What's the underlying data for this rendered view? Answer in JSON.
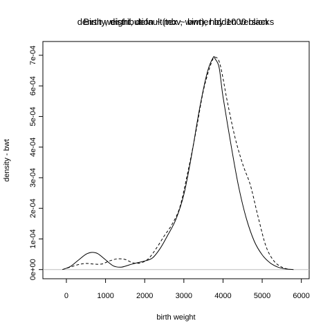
{
  "chart_data": {
    "type": "line",
    "titles": [
      "Birth weight, default(tex ~ bwt), hidden version",
      "density, distribution ~ mbv, winner by 1000 blacks"
    ],
    "xlabel": "birth weight",
    "ylabel": "density - bwt",
    "xlim": [
      -600,
      6200
    ],
    "ylim": [
      -3e-05,
      0.000745
    ],
    "x_ticks": [
      0,
      1000,
      2000,
      3000,
      4000,
      5000,
      6000
    ],
    "x_tick_labels": [
      "0",
      "1000",
      "2000",
      "3000",
      "4000",
      "5000",
      "6000"
    ],
    "y_ticks": [
      0,
      0.0001,
      0.0002,
      0.0003,
      0.0004,
      0.0005,
      0.0006,
      0.0007
    ],
    "y_tick_labels": [
      "0e+00",
      "1e-04",
      "2e-04",
      "3e-04",
      "4e-04",
      "5e-04",
      "6e-04",
      "7e-04"
    ],
    "reference_line_y": 0,
    "grid": false,
    "legend": "none",
    "colors": {
      "line": "#000000",
      "reference": "#bebebe",
      "frame": "#000000"
    },
    "series": [
      {
        "style": "solid",
        "x": [
          -100,
          100,
          300,
          500,
          650,
          800,
          1000,
          1200,
          1400,
          1600,
          1800,
          2000,
          2200,
          2400,
          2600,
          2800,
          3000,
          3200,
          3400,
          3600,
          3750,
          3800,
          3900,
          4000,
          4200,
          4400,
          4600,
          4800,
          5000,
          5200,
          5400,
          5600,
          5800
        ],
        "y": [
          0,
          1e-05,
          3e-05,
          5e-05,
          5.6e-05,
          5.2e-05,
          3.2e-05,
          1.2e-05,
          8e-06,
          1.5e-05,
          2.2e-05,
          2.8e-05,
          3.8e-05,
          7e-05,
          0.000115,
          0.000165,
          0.000245,
          0.000375,
          0.000525,
          0.000645,
          0.000693,
          0.000688,
          0.00066,
          0.000565,
          0.00041,
          0.00027,
          0.000165,
          9.2e-05,
          4.8e-05,
          2.2e-05,
          8e-06,
          2e-06,
          0
        ]
      },
      {
        "style": "dashed",
        "x": [
          -100,
          100,
          300,
          500,
          700,
          900,
          1100,
          1300,
          1500,
          1700,
          1900,
          2100,
          2300,
          2500,
          2700,
          2900,
          3100,
          3300,
          3500,
          3700,
          3800,
          3900,
          4000,
          4100,
          4300,
          4500,
          4700,
          4900,
          5100,
          5300,
          5500,
          5700
        ],
        "y": [
          0,
          8e-06,
          1.6e-05,
          2e-05,
          1.8e-05,
          1.8e-05,
          2.8e-05,
          3.5e-05,
          3.3e-05,
          2.2e-05,
          2.2e-05,
          3.6e-05,
          7e-05,
          0.00011,
          0.000148,
          0.000205,
          0.000318,
          0.000445,
          0.000585,
          0.000675,
          0.000693,
          0.00068,
          0.000625,
          0.000555,
          0.000435,
          0.000345,
          0.000275,
          0.00017,
          7.5e-05,
          2.8e-05,
          8e-06,
          0
        ]
      }
    ]
  }
}
